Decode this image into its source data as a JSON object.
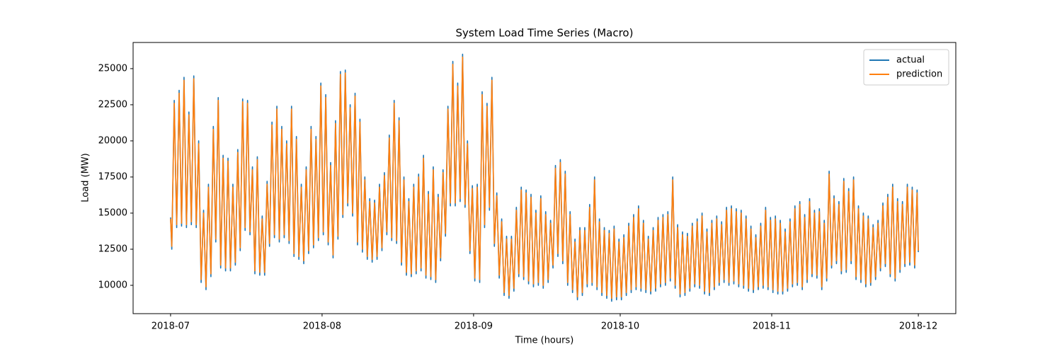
{
  "chart_data": {
    "type": "line",
    "title": "System Load Time Series (Macro)",
    "xlabel": "Time (hours)",
    "ylabel": "Load (MW)",
    "xlim": [
      -184,
      3856
    ],
    "ylim": [
      8040,
      26810
    ],
    "xticks": [
      {
        "value": 0,
        "label": "2018-07"
      },
      {
        "value": 744,
        "label": "2018-08"
      },
      {
        "value": 1488,
        "label": "2018-09"
      },
      {
        "value": 2208,
        "label": "2018-10"
      },
      {
        "value": 2952,
        "label": "2018-11"
      },
      {
        "value": 3672,
        "label": "2018-12"
      }
    ],
    "yticks": [
      10000,
      12500,
      15000,
      17500,
      20000,
      22500,
      25000
    ],
    "grid": false,
    "legend": "upper right",
    "x": [
      0,
      6,
      18,
      30,
      42,
      54,
      66,
      78,
      90,
      102,
      114,
      126,
      138,
      150,
      162,
      174,
      186,
      198,
      210,
      222,
      234,
      246,
      258,
      270,
      282,
      294,
      306,
      318,
      330,
      342,
      354,
      366,
      378,
      390,
      402,
      414,
      426,
      438,
      450,
      462,
      474,
      486,
      498,
      510,
      522,
      534,
      546,
      558,
      570,
      582,
      594,
      606,
      618,
      630,
      642,
      654,
      666,
      678,
      690,
      702,
      714,
      726,
      738,
      750,
      762,
      774,
      786,
      798,
      810,
      822,
      834,
      846,
      858,
      870,
      882,
      894,
      906,
      918,
      930,
      942,
      954,
      966,
      978,
      990,
      1002,
      1014,
      1026,
      1038,
      1050,
      1062,
      1074,
      1086,
      1098,
      1110,
      1122,
      1134,
      1146,
      1158,
      1170,
      1182,
      1194,
      1206,
      1218,
      1230,
      1242,
      1254,
      1266,
      1278,
      1290,
      1302,
      1314,
      1326,
      1338,
      1350,
      1362,
      1374,
      1386,
      1398,
      1410,
      1422,
      1434,
      1446,
      1458,
      1470,
      1482,
      1494,
      1506,
      1518,
      1530,
      1542,
      1554,
      1566,
      1578,
      1590,
      1602,
      1614,
      1626,
      1638,
      1650,
      1662,
      1674,
      1686,
      1698,
      1710,
      1722,
      1734,
      1746,
      1758,
      1770,
      1782,
      1794,
      1806,
      1818,
      1830,
      1842,
      1854,
      1866,
      1878,
      1890,
      1902,
      1914,
      1926,
      1938,
      1950,
      1962,
      1974,
      1986,
      1998,
      2010,
      2022,
      2034,
      2046,
      2058,
      2070,
      2082,
      2094,
      2106,
      2118,
      2130,
      2142,
      2154,
      2166,
      2178,
      2190,
      2202,
      2214,
      2226,
      2238,
      2250,
      2262,
      2274,
      2286,
      2298,
      2310,
      2322,
      2334,
      2346,
      2358,
      2370,
      2382,
      2394,
      2406,
      2418,
      2430,
      2442,
      2454,
      2466,
      2478,
      2490,
      2502,
      2514,
      2526,
      2538,
      2550,
      2562,
      2574,
      2586,
      2598,
      2610,
      2622,
      2634,
      2646,
      2658,
      2670,
      2682,
      2694,
      2706,
      2718,
      2730,
      2742,
      2754,
      2766,
      2778,
      2790,
      2802,
      2814,
      2826,
      2838,
      2850,
      2862,
      2874,
      2886,
      2898,
      2910,
      2922,
      2934,
      2946,
      2958,
      2970,
      2982,
      2994,
      3006,
      3018,
      3030,
      3042,
      3054,
      3066,
      3078,
      3090,
      3102,
      3114,
      3126,
      3138,
      3150,
      3162,
      3174,
      3186,
      3198,
      3210,
      3222,
      3234,
      3246,
      3258,
      3270,
      3282,
      3294,
      3306,
      3318,
      3330,
      3342,
      3354,
      3366,
      3378,
      3390,
      3402,
      3414,
      3426,
      3438,
      3450,
      3462,
      3474,
      3486,
      3498,
      3510,
      3522,
      3534,
      3546,
      3558,
      3570,
      3582,
      3594,
      3606,
      3618,
      3630,
      3642,
      3654,
      3666,
      3672
    ],
    "series": [
      {
        "name": "actual",
        "color": "#1f77b4",
        "values": [
          14700,
          12500,
          22800,
          14000,
          23500,
          14100,
          24400,
          14000,
          22000,
          14200,
          24500,
          14000,
          20000,
          10200,
          15200,
          9700,
          17000,
          10600,
          21000,
          13000,
          23000,
          11200,
          19000,
          11000,
          18800,
          11000,
          17000,
          11400,
          19400,
          12400,
          22900,
          13800,
          22800,
          13500,
          18200,
          10800,
          18900,
          10700,
          14800,
          10700,
          17200,
          12700,
          21300,
          13300,
          22400,
          13000,
          21000,
          13300,
          20000,
          12900,
          22400,
          12000,
          20300,
          11800,
          17000,
          11500,
          18200,
          12200,
          21000,
          12600,
          20300,
          13100,
          24000,
          13500,
          23200,
          12800,
          18500,
          11900,
          21400,
          13200,
          24800,
          14700,
          24900,
          15500,
          22500,
          14800,
          23300,
          12800,
          21500,
          12300,
          17500,
          11800,
          16000,
          11600,
          15900,
          11800,
          17000,
          12400,
          17800,
          13500,
          20400,
          13100,
          22800,
          12900,
          21600,
          11400,
          17500,
          10700,
          16000,
          10600,
          17000,
          10800,
          17700,
          11000,
          19000,
          10500,
          16500,
          10400,
          18200,
          10200,
          16300,
          11700,
          18000,
          13400,
          22400,
          15500,
          25500,
          15500,
          24000,
          15800,
          26000,
          15400,
          20000,
          12200,
          16900,
          10300,
          17000,
          10200,
          23400,
          14000,
          22600,
          15200,
          24400,
          12700,
          16400,
          10500,
          14600,
          9300,
          13400,
          9100,
          13400,
          9600,
          15400,
          10600,
          16800,
          10400,
          16600,
          10100,
          16300,
          9900,
          15200,
          10000,
          16200,
          9800,
          15100,
          10200,
          14500,
          11200,
          18300,
          12000,
          18700,
          11500,
          17900,
          10000,
          15100,
          9500,
          13200,
          9000,
          14000,
          9300,
          14000,
          9900,
          15600,
          10000,
          17500,
          9700,
          14600,
          9300,
          14000,
          9100,
          13800,
          8900,
          14100,
          9000,
          13200,
          9000,
          13500,
          9300,
          14300,
          9500,
          14900,
          9700,
          15500,
          9600,
          14500,
          9500,
          13400,
          9400,
          14000,
          9600,
          14700,
          9900,
          14900,
          10000,
          15100,
          10300,
          17500,
          9800,
          14200,
          9200,
          13700,
          9300,
          13600,
          9600,
          14300,
          9900,
          14600,
          9800,
          15000,
          9400,
          13900,
          9300,
          14500,
          9700,
          14800,
          10000,
          14400,
          10200,
          15400,
          10000,
          15500,
          10100,
          15300,
          9900,
          15200,
          9800,
          14800,
          9600,
          14100,
          9500,
          13500,
          9700,
          14300,
          9800,
          15400,
          9700,
          14700,
          9500,
          14800,
          9400,
          14500,
          9400,
          13900,
          9600,
          14600,
          9900,
          15500,
          10000,
          15800,
          9700,
          14900,
          10200,
          16000,
          10600,
          15200,
          10500,
          15300,
          9700,
          14500,
          10300,
          17900,
          11200,
          16200,
          11500,
          15800,
          10800,
          17400,
          10900,
          16700,
          11500,
          17500,
          10400,
          15500,
          10200,
          15000,
          9900,
          14800,
          10000,
          14200,
          10400,
          14500,
          11000,
          15700,
          11300,
          16300,
          10600,
          17000,
          10300,
          16000,
          10900,
          15800,
          11300,
          17000,
          11400,
          16800,
          11200,
          16600,
          12300
        ]
      },
      {
        "name": "prediction",
        "color": "#ff7f0e",
        "values": [
          14600,
          12700,
          22600,
          14200,
          23300,
          14300,
          24200,
          14200,
          21800,
          14400,
          24300,
          14200,
          19800,
          10400,
          15000,
          9900,
          16800,
          10800,
          20800,
          13200,
          22800,
          11400,
          18800,
          11200,
          18600,
          11200,
          16800,
          11600,
          19200,
          12600,
          22700,
          14000,
          22600,
          13700,
          18000,
          11000,
          18700,
          10900,
          14600,
          10900,
          17000,
          12900,
          21100,
          13500,
          22200,
          13200,
          20800,
          13500,
          19800,
          13100,
          22200,
          12200,
          20100,
          12000,
          16800,
          11700,
          18000,
          12400,
          20800,
          12800,
          20100,
          13300,
          23800,
          13700,
          23000,
          13000,
          18300,
          12100,
          21200,
          13400,
          24600,
          14900,
          24700,
          15700,
          22300,
          15000,
          23100,
          13000,
          21300,
          12500,
          17300,
          12000,
          15800,
          11800,
          15700,
          12000,
          16800,
          12600,
          17600,
          13700,
          20200,
          13300,
          22600,
          13100,
          21400,
          11600,
          17300,
          10900,
          15800,
          10800,
          16800,
          11000,
          17500,
          11200,
          18800,
          10700,
          16300,
          10600,
          18000,
          10400,
          16100,
          11900,
          17800,
          13600,
          22200,
          15700,
          25300,
          15700,
          23800,
          16000,
          25800,
          15600,
          19800,
          12400,
          16700,
          10500,
          16800,
          10400,
          23200,
          14200,
          22400,
          15400,
          24200,
          12900,
          16200,
          10700,
          14400,
          9500,
          13200,
          9300,
          13200,
          9800,
          15200,
          10800,
          16600,
          10600,
          16400,
          10300,
          16100,
          10100,
          15000,
          10200,
          16000,
          10000,
          14900,
          10400,
          14300,
          11400,
          18100,
          12200,
          18500,
          11700,
          17700,
          10200,
          14900,
          9700,
          13000,
          9200,
          13800,
          9500,
          13800,
          10100,
          15400,
          10200,
          17300,
          9900,
          14400,
          9500,
          13800,
          9300,
          13600,
          9100,
          13900,
          9200,
          13000,
          9200,
          13300,
          9500,
          14100,
          9700,
          14700,
          9900,
          15300,
          9800,
          14300,
          9700,
          13200,
          9600,
          13800,
          9800,
          14500,
          10100,
          14700,
          10200,
          14900,
          10500,
          17300,
          10000,
          14000,
          9400,
          13500,
          9500,
          13400,
          9800,
          14100,
          10100,
          14400,
          10000,
          14800,
          9600,
          13700,
          9500,
          14300,
          9900,
          14600,
          10200,
          14200,
          10400,
          15200,
          10200,
          15300,
          10300,
          15100,
          10100,
          15000,
          10000,
          14600,
          9800,
          13900,
          9700,
          13300,
          9900,
          14100,
          10000,
          15200,
          9900,
          14500,
          9700,
          14600,
          9600,
          14300,
          9600,
          13700,
          9800,
          14400,
          10100,
          15300,
          10200,
          15600,
          9900,
          14700,
          10400,
          15800,
          10800,
          15000,
          10700,
          15100,
          9900,
          14300,
          10500,
          17700,
          11400,
          16000,
          11700,
          15600,
          11000,
          17200,
          11100,
          16500,
          11700,
          17300,
          10600,
          15300,
          10400,
          14800,
          10100,
          14600,
          10200,
          14000,
          10600,
          14300,
          11200,
          15500,
          11500,
          16100,
          10800,
          16800,
          10500,
          15800,
          11100,
          15600,
          11500,
          16800,
          11600,
          16600,
          11400,
          16400,
          12400
        ]
      }
    ]
  }
}
